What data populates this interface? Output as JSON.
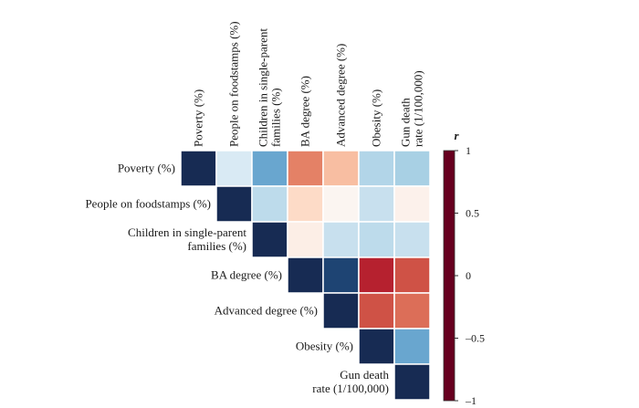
{
  "chart_data": {
    "type": "heatmap",
    "variables": [
      "Poverty (%)",
      "People on foodstamps (%)",
      [
        "Children in single-parent",
        "families (%)"
      ],
      "BA degree (%)",
      "Advanced degree (%)",
      "Obesity (%)",
      [
        "Gun death",
        "rate (1/100,000)"
      ]
    ],
    "matrix": [
      [
        1,
        0.15,
        0.6,
        -0.38,
        -0.18,
        0.35,
        0.4
      ],
      [
        null,
        1,
        0.3,
        -0.1,
        -0.02,
        0.25,
        -0.03
      ],
      [
        null,
        null,
        1,
        -0.04,
        0.25,
        0.3,
        0.25
      ],
      [
        null,
        null,
        null,
        1,
        0.92,
        -0.72,
        -0.55
      ],
      [
        null,
        null,
        null,
        null,
        1,
        -0.55,
        -0.45
      ],
      [
        null,
        null,
        null,
        null,
        null,
        1,
        0.6
      ],
      [
        null,
        null,
        null,
        null,
        null,
        null,
        1
      ]
    ],
    "colorbar": {
      "title": "r",
      "range": [
        -1,
        1
      ],
      "ticks": [
        1,
        0.5,
        0,
        -0.5,
        -1
      ],
      "tick_labels": [
        "1",
        "0.5",
        "0",
        "–0.5",
        "–1"
      ]
    },
    "colors": {
      "stops": [
        [
          -1.0,
          "#67001f"
        ],
        [
          -0.75,
          "#b2182b"
        ],
        [
          -0.5,
          "#d6604d"
        ],
        [
          -0.25,
          "#f4a582"
        ],
        [
          -0.1,
          "#fddbc7"
        ],
        [
          0.0,
          "#fbfbfb"
        ],
        [
          0.1,
          "#e2eff7"
        ],
        [
          0.25,
          "#c8e0ee"
        ],
        [
          0.5,
          "#92c5de"
        ],
        [
          0.75,
          "#2c78b8"
        ],
        [
          1.0,
          "#172b53"
        ]
      ]
    }
  }
}
